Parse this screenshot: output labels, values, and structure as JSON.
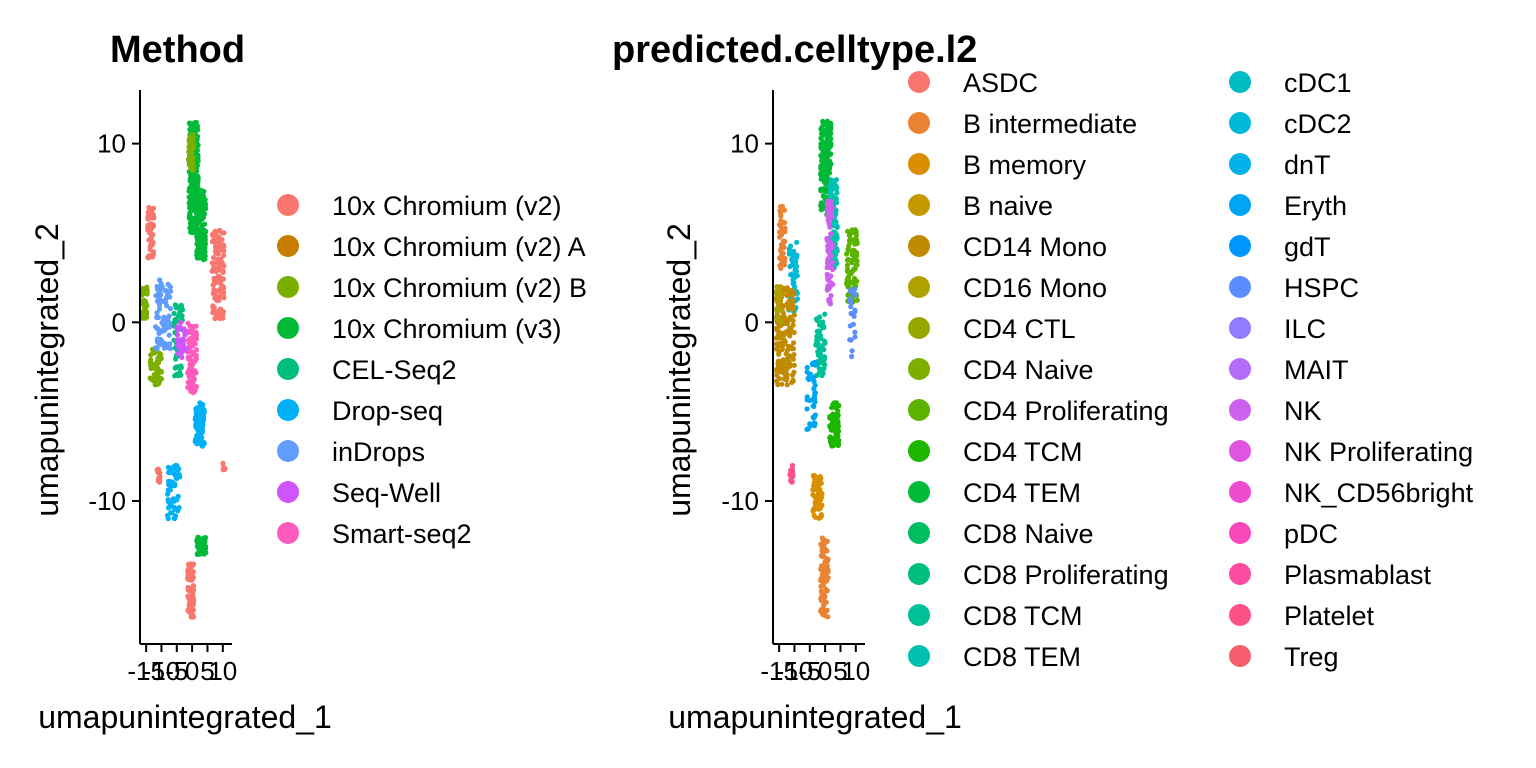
{
  "palette": {
    "10x Chromium (v2)": "#F8766D",
    "10x Chromium (v2) A": "#D39200",
    "10x Chromium (v2) B": "#93AA00",
    "10x Chromium (v3)": "#00BA38",
    "CEL-Seq2": "#00C19F",
    "Drop-seq": "#00B9E3",
    "inDrops": "#619CFF",
    "Seq-Well": "#DB72FB",
    "Smart-seq2": "#FF61C3"
  },
  "chart_data": [
    {
      "type": "scatter",
      "title": "Method",
      "xlabel": "umapunintegrated_1",
      "ylabel": "umapunintegrated_2",
      "xlim": [
        -17,
        13
      ],
      "ylim": [
        -18,
        13
      ],
      "xticks": [
        "-15",
        "-10",
        "-5",
        "0",
        "5",
        "10"
      ],
      "xtick_values": [
        -15,
        -10,
        -5,
        0,
        5,
        10
      ],
      "yticks": [
        "10",
        "0",
        "-10"
      ],
      "ytick_values": [
        10,
        0,
        -10
      ],
      "grid": false,
      "legend_position": "right",
      "legend": [
        {
          "label": "10x Chromium (v2)",
          "color": "#F8766D"
        },
        {
          "label": "10x Chromium (v2) A",
          "color": "#C77C00"
        },
        {
          "label": "10x Chromium (v2) B",
          "color": "#7CAE00"
        },
        {
          "label": "10x Chromium (v3)",
          "color": "#00BA38"
        },
        {
          "label": "CEL-Seq2",
          "color": "#00BF7D"
        },
        {
          "label": "Drop-seq",
          "color": "#00B0F6"
        },
        {
          "label": "inDrops",
          "color": "#619CFF"
        },
        {
          "label": "Seq-Well",
          "color": "#CF55FF"
        },
        {
          "label": "Smart-seq2",
          "color": "#FF5BBD"
        }
      ],
      "clusters": [
        {
          "label": "10x Chromium (v3)",
          "x": [
            -1.0,
            2.0
          ],
          "y": [
            5,
            11.2
          ],
          "n": 260
        },
        {
          "label": "10x Chromium (v2) B",
          "x": [
            -1.2,
            0.5
          ],
          "y": [
            8.5,
            10.5
          ],
          "n": 60
        },
        {
          "label": "10x Chromium (v3)",
          "x": [
            1.5,
            4.5
          ],
          "y": [
            3.5,
            7.5
          ],
          "n": 120
        },
        {
          "label": "10x Chromium (v2)",
          "x": [
            -14.5,
            -12.5
          ],
          "y": [
            3.5,
            6.5
          ],
          "n": 50
        },
        {
          "label": "10x Chromium (v2)",
          "x": [
            6.5,
            10.5
          ],
          "y": [
            0.2,
            5.3
          ],
          "n": 120
        },
        {
          "label": "10x Chromium (v2) B",
          "x": [
            -16.5,
            -14.5
          ],
          "y": [
            0.2,
            2.0
          ],
          "n": 40
        },
        {
          "label": "10x Chromium (v2) B",
          "x": [
            -14,
            -10
          ],
          "y": [
            -3.5,
            -1.5
          ],
          "n": 50
        },
        {
          "label": "inDrops",
          "x": [
            -12,
            -7
          ],
          "y": [
            -1.5,
            2.5
          ],
          "n": 90
        },
        {
          "label": "CEL-Seq2",
          "x": [
            -6,
            -3
          ],
          "y": [
            -3,
            1
          ],
          "n": 50
        },
        {
          "label": "Smart-seq2",
          "x": [
            -1.5,
            1.5
          ],
          "y": [
            -4,
            0
          ],
          "n": 90
        },
        {
          "label": "Seq-Well",
          "x": [
            -5,
            -2
          ],
          "y": [
            -2,
            0
          ],
          "n": 30
        },
        {
          "label": "Drop-seq",
          "x": [
            1.0,
            4.0
          ],
          "y": [
            -7,
            -4.5
          ],
          "n": 80
        },
        {
          "label": "Drop-seq",
          "x": [
            -8,
            -4
          ],
          "y": [
            -11,
            -8
          ],
          "n": 60
        },
        {
          "label": "10x Chromium (v3)",
          "x": [
            1.5,
            4.5
          ],
          "y": [
            -13,
            -12
          ],
          "n": 50
        },
        {
          "label": "10x Chromium (v2)",
          "x": [
            -1.5,
            0.5
          ],
          "y": [
            -16.5,
            -13.5
          ],
          "n": 80
        },
        {
          "label": "10x Chromium (v2)",
          "x": [
            -11.5,
            -10.5
          ],
          "y": [
            -9,
            -8
          ],
          "n": 15
        },
        {
          "label": "10x Chromium (v2)",
          "x": [
            10,
            10.8
          ],
          "y": [
            -8.3,
            -7.7
          ],
          "n": 8
        }
      ]
    },
    {
      "type": "scatter",
      "title": "predicted.celltype.l2",
      "xlabel": "umapunintegrated_1",
      "ylabel": "umapunintegrated_2",
      "xlim": [
        -17,
        13
      ],
      "ylim": [
        -18,
        13
      ],
      "xticks": [
        "-15",
        "-10",
        "-5",
        "0",
        "5",
        "10"
      ],
      "xtick_values": [
        -15,
        -10,
        -5,
        0,
        5,
        10
      ],
      "yticks": [
        "10",
        "0",
        "-10"
      ],
      "ytick_values": [
        10,
        0,
        -10
      ],
      "grid": false,
      "legend_position": "right",
      "legend_columns": [
        [
          {
            "label": "ASDC",
            "color": "#F8766D"
          },
          {
            "label": "B intermediate",
            "color": "#EB8335"
          },
          {
            "label": "B memory",
            "color": "#DA8F00"
          },
          {
            "label": "B naive",
            "color": "#C49A00"
          },
          {
            "label": "CD14 Mono",
            "color": "#C08B00"
          },
          {
            "label": "CD16 Mono",
            "color": "#AFA100"
          },
          {
            "label": "CD4 CTL",
            "color": "#99A800"
          },
          {
            "label": "CD4 Naive",
            "color": "#7CAE00"
          },
          {
            "label": "CD4 Proliferating",
            "color": "#5BB300"
          },
          {
            "label": "CD4 TCM",
            "color": "#1EB700"
          },
          {
            "label": "CD4 TEM",
            "color": "#00BA38"
          },
          {
            "label": "CD8 Naive",
            "color": "#00BD5F"
          },
          {
            "label": "CD8 Proliferating",
            "color": "#00BF7D"
          },
          {
            "label": "CD8 TCM",
            "color": "#00C097"
          },
          {
            "label": "CD8 TEM",
            "color": "#00C0AF"
          }
        ],
        [
          {
            "label": "cDC1",
            "color": "#00BDC4"
          },
          {
            "label": "cDC2",
            "color": "#00B8D8"
          },
          {
            "label": "dnT",
            "color": "#00B0E9"
          },
          {
            "label": "Eryth",
            "color": "#00A5F6"
          },
          {
            "label": "gdT",
            "color": "#0096FF"
          },
          {
            "label": "HSPC",
            "color": "#5C8DFF"
          },
          {
            "label": "ILC",
            "color": "#8F7CFF"
          },
          {
            "label": "MAIT",
            "color": "#B26EF8"
          },
          {
            "label": "NK",
            "color": "#CD61EE"
          },
          {
            "label": "NK Proliferating",
            "color": "#E055E0"
          },
          {
            "label": "NK_CD56bright",
            "color": "#EE4CCF"
          },
          {
            "label": "pDC",
            "color": "#F848B9"
          },
          {
            "label": "Plasmablast",
            "color": "#FC4BA1"
          },
          {
            "label": "Platelet",
            "color": "#FC5287"
          },
          {
            "label": "Treg",
            "color": "#F75D6D"
          }
        ]
      ],
      "clusters": [
        {
          "label": "CD4 TEM",
          "x": [
            -1.5,
            2.0
          ],
          "y": [
            6,
            11.3
          ],
          "n": 200
        },
        {
          "label": "CD8 TEM",
          "x": [
            1.5,
            4.0
          ],
          "y": [
            3,
            8
          ],
          "n": 110
        },
        {
          "label": "NK",
          "x": [
            0.5,
            2.5
          ],
          "y": [
            1,
            7
          ],
          "n": 80
        },
        {
          "label": "CD4 Proliferating",
          "x": [
            7,
            10.5
          ],
          "y": [
            1,
            5.2
          ],
          "n": 90
        },
        {
          "label": "B intermediate",
          "x": [
            -15,
            -13
          ],
          "y": [
            3,
            6.5
          ],
          "n": 40
        },
        {
          "label": "cDC2",
          "x": [
            -12,
            -9
          ],
          "y": [
            0.5,
            4.5
          ],
          "n": 50
        },
        {
          "label": "CD14 Mono",
          "x": [
            -16,
            -10
          ],
          "y": [
            -3.5,
            2
          ],
          "n": 160
        },
        {
          "label": "B memory",
          "x": [
            -4,
            -1
          ],
          "y": [
            -11,
            -8.5
          ],
          "n": 60
        },
        {
          "label": "CD4 TCM",
          "x": [
            1.5,
            4.5
          ],
          "y": [
            -7,
            -4.5
          ],
          "n": 80
        },
        {
          "label": "CD8 TCM",
          "x": [
            -3,
            0
          ],
          "y": [
            -3,
            0.5
          ],
          "n": 60
        },
        {
          "label": "B intermediate",
          "x": [
            -1.5,
            1.0
          ],
          "y": [
            -16.5,
            -12
          ],
          "n": 100
        },
        {
          "label": "Platelet",
          "x": [
            -11.5,
            -10.5
          ],
          "y": [
            -9,
            -8
          ],
          "n": 15
        },
        {
          "label": "Eryth",
          "x": [
            -6,
            -3
          ],
          "y": [
            -6,
            -2
          ],
          "n": 40
        },
        {
          "label": "CD16 Mono",
          "x": [
            -16,
            -14
          ],
          "y": [
            0,
            2
          ],
          "n": 30
        },
        {
          "label": "HSPC",
          "x": [
            8,
            10
          ],
          "y": [
            -2,
            2
          ],
          "n": 20
        }
      ]
    }
  ]
}
